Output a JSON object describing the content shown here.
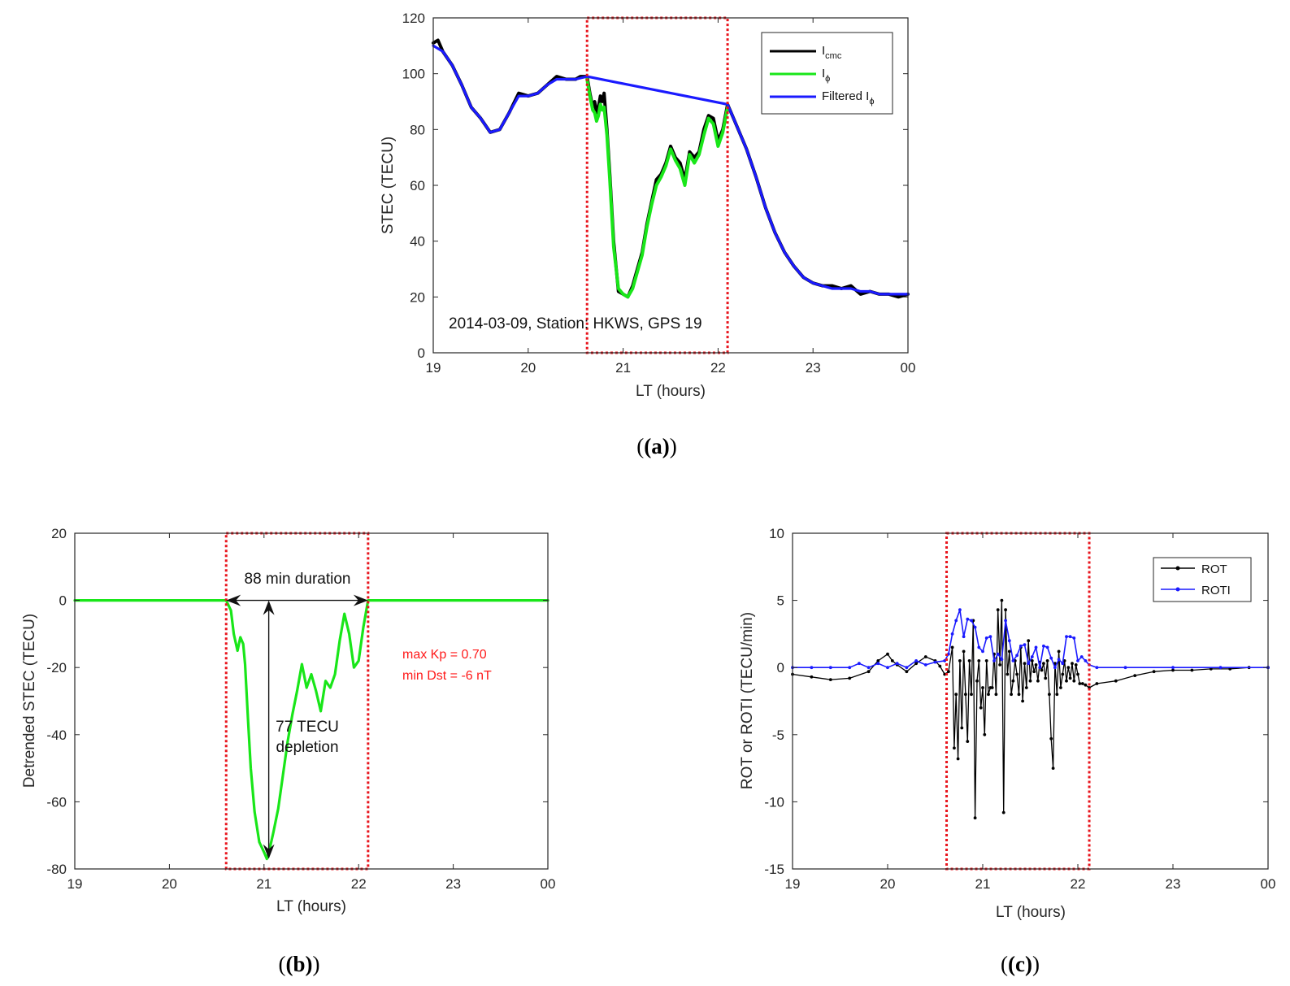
{
  "figure": {
    "captions": [
      "(a)",
      "(b)",
      "(c)"
    ]
  },
  "chart_data": [
    {
      "id": "a",
      "type": "line",
      "xlabel": "LT (hours)",
      "ylabel": "STEC (TECU)",
      "xlim": [
        0,
        5
      ],
      "ylim": [
        0,
        120
      ],
      "xticks": [
        0,
        1,
        2,
        3,
        4,
        5
      ],
      "xtick_labels": [
        "19",
        "20",
        "21",
        "22",
        "23",
        "00"
      ],
      "yticks": [
        0,
        20,
        40,
        60,
        80,
        100,
        120
      ],
      "ytick_labels": [
        "0",
        "20",
        "40",
        "60",
        "80",
        "100",
        "120"
      ],
      "annotation": "2014-03-09, Station: HKWS, GPS 19",
      "highlight_region": {
        "x": [
          1.62,
          3.1
        ],
        "color": "#e8141c"
      },
      "legend_items": [
        {
          "main": "I",
          "sub": "cmc",
          "color": "#000000"
        },
        {
          "main": "I",
          "sub": "ϕ",
          "color": "#19e619"
        },
        {
          "main": "Filtered I",
          "sub": "ϕ",
          "color": "#1a1aff"
        }
      ],
      "series": [
        {
          "name": "Icmc",
          "color": "#000000",
          "x": [
            0,
            0.05,
            0.1,
            0.2,
            0.3,
            0.4,
            0.5,
            0.6,
            0.7,
            0.8,
            0.9,
            1.0,
            1.1,
            1.2,
            1.3,
            1.4,
            1.5,
            1.55,
            1.62,
            1.65,
            1.68,
            1.7,
            1.72,
            1.74,
            1.76,
            1.78,
            1.8,
            1.83,
            1.86,
            1.9,
            1.95,
            2.0,
            2.05,
            2.1,
            2.15,
            2.2,
            2.25,
            2.3,
            2.35,
            2.4,
            2.45,
            2.5,
            2.55,
            2.6,
            2.65,
            2.7,
            2.75,
            2.8,
            2.85,
            2.9,
            2.95,
            3.0,
            3.05,
            3.1,
            3.2,
            3.3,
            3.4,
            3.5,
            3.6,
            3.7,
            3.8,
            3.9,
            4.0,
            4.1,
            4.2,
            4.3,
            4.4,
            4.5,
            4.6,
            4.7,
            4.8,
            4.9,
            5.0
          ],
          "y": [
            111,
            112,
            108,
            103,
            96,
            88,
            84,
            79,
            80,
            86,
            93,
            92,
            93,
            96,
            99,
            98,
            98,
            99,
            99,
            93,
            88,
            90,
            86,
            88,
            92,
            90,
            93,
            80,
            64,
            40,
            22,
            21,
            20,
            24,
            30,
            36,
            46,
            54,
            62,
            64,
            68,
            74,
            70,
            68,
            62,
            72,
            70,
            72,
            80,
            85,
            84,
            76,
            80,
            89,
            81,
            73,
            63,
            52,
            43,
            36,
            31,
            27,
            25,
            24,
            24,
            23,
            24,
            21,
            22,
            21,
            21,
            20,
            21
          ]
        },
        {
          "name": "Iϕ",
          "color": "#19e619",
          "x": [
            1.62,
            1.65,
            1.68,
            1.7,
            1.72,
            1.74,
            1.76,
            1.78,
            1.8,
            1.83,
            1.86,
            1.9,
            1.95,
            2.0,
            2.05,
            2.1,
            2.15,
            2.2,
            2.25,
            2.3,
            2.35,
            2.4,
            2.45,
            2.5,
            2.55,
            2.6,
            2.65,
            2.7,
            2.75,
            2.8,
            2.85,
            2.9,
            2.95,
            3.0,
            3.05,
            3.1
          ],
          "y": [
            98,
            92,
            87,
            86,
            83,
            85,
            89,
            87,
            88,
            78,
            62,
            38,
            23,
            21,
            20,
            23,
            29,
            35,
            45,
            53,
            60,
            63,
            67,
            73,
            69,
            66,
            60,
            71,
            68,
            71,
            78,
            84,
            82,
            74,
            79,
            88
          ]
        },
        {
          "name": "Filtered Iϕ",
          "color": "#1a1aff",
          "x": [
            0,
            0.1,
            0.2,
            0.3,
            0.4,
            0.5,
            0.6,
            0.7,
            0.8,
            0.9,
            1.0,
            1.1,
            1.2,
            1.3,
            1.4,
            1.5,
            1.62,
            3.1,
            3.2,
            3.3,
            3.4,
            3.5,
            3.6,
            3.7,
            3.8,
            3.9,
            4.0,
            4.1,
            4.2,
            4.3,
            4.4,
            4.5,
            4.6,
            4.7,
            4.8,
            4.9,
            5.0
          ],
          "y": [
            110,
            108,
            103,
            96,
            88,
            84,
            79,
            80,
            86,
            92,
            92,
            93,
            96,
            98,
            98,
            98,
            99,
            89,
            81,
            73,
            63,
            52,
            43,
            36,
            31,
            27,
            25,
            24,
            23,
            23,
            23,
            22,
            22,
            21,
            21,
            21,
            21
          ]
        }
      ]
    },
    {
      "id": "b",
      "type": "line",
      "xlabel": "LT (hours)",
      "ylabel": "Detrended STEC (TECU)",
      "xlim": [
        0,
        5
      ],
      "ylim": [
        -80,
        20
      ],
      "xticks": [
        0,
        1,
        2,
        3,
        4,
        5
      ],
      "xtick_labels": [
        "19",
        "20",
        "21",
        "22",
        "23",
        "00"
      ],
      "yticks": [
        -80,
        -60,
        -40,
        -20,
        0,
        20
      ],
      "ytick_labels": [
        "-80",
        "-60",
        "-40",
        "-20",
        "0",
        "20"
      ],
      "highlight_region": {
        "x": [
          1.6,
          3.1
        ],
        "color": "#e8141c"
      },
      "annotations": {
        "duration": "88 min duration",
        "depletion_line1": "77 TECU",
        "depletion_line2": "depletion",
        "kp": "max Kp = 0.70",
        "dst": "min Dst = -6 nT"
      },
      "duration_arrow": {
        "x": [
          1.6,
          3.1
        ],
        "y": 0
      },
      "depletion_arrow": {
        "x": 2.05,
        "y": [
          0,
          -77
        ]
      },
      "series": [
        {
          "name": "Detrended STEC",
          "color": "#19e619",
          "x": [
            0,
            1.6,
            1.65,
            1.68,
            1.72,
            1.75,
            1.78,
            1.8,
            1.83,
            1.86,
            1.9,
            1.95,
            2.0,
            2.03,
            2.06,
            2.1,
            2.15,
            2.2,
            2.25,
            2.3,
            2.35,
            2.4,
            2.45,
            2.5,
            2.55,
            2.6,
            2.65,
            2.7,
            2.75,
            2.8,
            2.85,
            2.9,
            2.95,
            3.0,
            3.05,
            3.1,
            3.5,
            5.0
          ],
          "y": [
            0,
            0,
            -3,
            -10,
            -15,
            -11,
            -13,
            -19,
            -35,
            -50,
            -63,
            -72,
            -75,
            -77,
            -74,
            -69,
            -62,
            -52,
            -42,
            -34,
            -27,
            -19,
            -26,
            -22,
            -27,
            -33,
            -24,
            -26,
            -22,
            -12,
            -4,
            -10,
            -20,
            -18,
            -8,
            0,
            0,
            0
          ]
        }
      ]
    },
    {
      "id": "c",
      "type": "line",
      "xlabel": "LT (hours)",
      "ylabel": "ROT or ROTI (TECU/min)",
      "xlim": [
        0,
        5
      ],
      "ylim": [
        -15,
        10
      ],
      "xticks": [
        0,
        1,
        2,
        3,
        4,
        5
      ],
      "xtick_labels": [
        "19",
        "20",
        "21",
        "22",
        "23",
        "00"
      ],
      "yticks": [
        -15,
        -10,
        -5,
        0,
        5,
        10
      ],
      "ytick_labels": [
        "-15",
        "-10",
        "-5",
        "0",
        "5",
        "10"
      ],
      "highlight_region": {
        "x": [
          1.62,
          3.12
        ],
        "color": "#e8141c"
      },
      "legend_items": [
        {
          "label": "ROT",
          "color": "#000000"
        },
        {
          "label": "ROTI",
          "color": "#1a1aff"
        }
      ],
      "series": [
        {
          "name": "ROT",
          "color": "#000000",
          "x": [
            0,
            0.2,
            0.4,
            0.6,
            0.8,
            0.9,
            1.0,
            1.05,
            1.1,
            1.2,
            1.3,
            1.4,
            1.5,
            1.55,
            1.6,
            1.64,
            1.68,
            1.7,
            1.72,
            1.74,
            1.76,
            1.78,
            1.8,
            1.82,
            1.84,
            1.86,
            1.88,
            1.9,
            1.92,
            1.94,
            1.96,
            1.98,
            2.0,
            2.02,
            2.04,
            2.06,
            2.08,
            2.1,
            2.12,
            2.14,
            2.16,
            2.18,
            2.2,
            2.22,
            2.24,
            2.26,
            2.28,
            2.3,
            2.32,
            2.34,
            2.36,
            2.38,
            2.4,
            2.42,
            2.44,
            2.46,
            2.48,
            2.5,
            2.52,
            2.54,
            2.56,
            2.58,
            2.6,
            2.62,
            2.64,
            2.66,
            2.68,
            2.7,
            2.72,
            2.74,
            2.76,
            2.78,
            2.8,
            2.82,
            2.84,
            2.86,
            2.88,
            2.9,
            2.92,
            2.94,
            2.96,
            2.98,
            3.0,
            3.02,
            3.05,
            3.08,
            3.12,
            3.2,
            3.4,
            3.6,
            3.8,
            4.0,
            4.2,
            4.4,
            4.6,
            4.8,
            5.0
          ],
          "y": [
            -0.5,
            -0.7,
            -0.9,
            -0.8,
            -0.3,
            0.5,
            1.0,
            0.5,
            0.2,
            -0.3,
            0.3,
            0.8,
            0.5,
            0.1,
            -0.5,
            -0.3,
            1.5,
            -6.0,
            -2.0,
            -6.8,
            0.5,
            -4.5,
            1.2,
            -2.0,
            -5.5,
            0.5,
            -2.0,
            3.5,
            -11.2,
            -1.0,
            0.5,
            -3.0,
            -1.5,
            -5.0,
            0.5,
            -2.0,
            -1.5,
            -1.5,
            1.0,
            -2.0,
            4.3,
            0.2,
            5.0,
            -10.8,
            4.3,
            -0.5,
            1.2,
            -2.0,
            -1.0,
            0.5,
            -0.5,
            -2.0,
            1.5,
            -2.5,
            0.3,
            -1.5,
            2.0,
            -1.0,
            0.5,
            -0.3,
            0.2,
            -1.0,
            0.4,
            -0.2,
            0.3,
            -0.8,
            0.5,
            -2.0,
            -5.3,
            -7.5,
            0.3,
            -2.0,
            1.2,
            -1.5,
            -0.5,
            0.5,
            -1.0,
            0.0,
            -0.8,
            0.3,
            -1.0,
            0.2,
            -0.5,
            -1.2,
            -1.2,
            -1.3,
            -1.5,
            -1.2,
            -1.0,
            -0.6,
            -0.3,
            -0.2,
            -0.2,
            -0.1,
            -0.1,
            0.0,
            0.0
          ]
        },
        {
          "name": "ROTI",
          "color": "#1a1aff",
          "x": [
            0,
            0.2,
            0.4,
            0.6,
            0.7,
            0.8,
            0.9,
            1.0,
            1.1,
            1.2,
            1.3,
            1.4,
            1.5,
            1.6,
            1.64,
            1.68,
            1.72,
            1.76,
            1.8,
            1.84,
            1.88,
            1.92,
            1.96,
            2.0,
            2.04,
            2.08,
            2.12,
            2.16,
            2.2,
            2.24,
            2.28,
            2.32,
            2.36,
            2.4,
            2.44,
            2.48,
            2.52,
            2.56,
            2.6,
            2.64,
            2.68,
            2.72,
            2.76,
            2.8,
            2.84,
            2.88,
            2.92,
            2.96,
            3.0,
            3.04,
            3.08,
            3.12,
            3.2,
            3.5,
            4.0,
            4.5,
            5.0
          ],
          "y": [
            0.0,
            0.0,
            0.0,
            0.0,
            0.3,
            0.0,
            0.3,
            0.0,
            0.3,
            0.0,
            0.5,
            0.2,
            0.4,
            0.5,
            1.0,
            2.5,
            3.5,
            4.3,
            2.3,
            3.6,
            3.5,
            3.0,
            1.5,
            1.2,
            2.2,
            2.3,
            0.5,
            1.0,
            0.6,
            3.5,
            2.0,
            0.5,
            0.9,
            1.6,
            1.7,
            0.3,
            0.8,
            1.5,
            0.0,
            1.6,
            1.5,
            0.7,
            0.0,
            0.6,
            0.3,
            2.3,
            2.3,
            2.2,
            0.5,
            0.8,
            0.5,
            0.2,
            0.0,
            0.0,
            0.0,
            0.0,
            0.0
          ]
        }
      ]
    }
  ]
}
